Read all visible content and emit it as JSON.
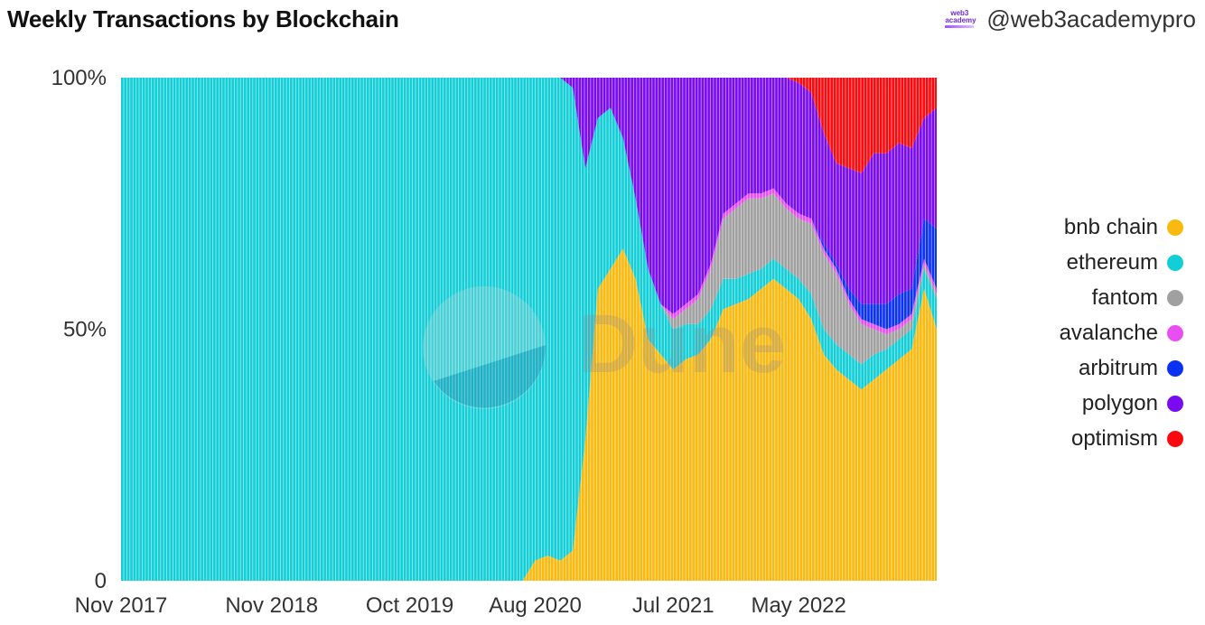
{
  "header": {
    "title": "Weekly Transactions by Blockchain",
    "handle": "@web3academypro",
    "logo_text_top": "web3",
    "logo_text_bottom": "academy",
    "logo_icon": "web3academy-logo-icon"
  },
  "watermark": {
    "text": "Dune",
    "icon": "dune-logo-icon"
  },
  "chart_data": {
    "type": "area",
    "stacked": true,
    "normalized": true,
    "title": "Weekly Transactions by Blockchain",
    "xlabel": "",
    "ylabel": "",
    "ylim": [
      0,
      100
    ],
    "y_ticks": [
      {
        "value": 0,
        "label": "0"
      },
      {
        "value": 50,
        "label": "50%"
      },
      {
        "value": 100,
        "label": "100%"
      }
    ],
    "x_range": [
      "2017-11",
      "2023-04"
    ],
    "x_ticks": [
      {
        "date": "2017-11",
        "label": "Nov 2017"
      },
      {
        "date": "2018-11",
        "label": "Nov 2018"
      },
      {
        "date": "2019-10",
        "label": "Oct 2019"
      },
      {
        "date": "2020-08",
        "label": "Aug 2020"
      },
      {
        "date": "2021-07",
        "label": "Jul 2021"
      },
      {
        "date": "2022-05",
        "label": "May 2022"
      }
    ],
    "legend_position": "right",
    "grid": false,
    "x": [
      "2017-11",
      "2018-05",
      "2018-11",
      "2019-05",
      "2019-10",
      "2020-03",
      "2020-07",
      "2020-08",
      "2020-09",
      "2020-10",
      "2020-11",
      "2020-12",
      "2021-01",
      "2021-02",
      "2021-03",
      "2021-04",
      "2021-05",
      "2021-06",
      "2021-07",
      "2021-08",
      "2021-09",
      "2021-10",
      "2021-11",
      "2021-12",
      "2022-01",
      "2022-02",
      "2022-03",
      "2022-04",
      "2022-05",
      "2022-06",
      "2022-07",
      "2022-08",
      "2022-09",
      "2022-10",
      "2022-11",
      "2022-12",
      "2023-01",
      "2023-02",
      "2023-03",
      "2023-04"
    ],
    "series": [
      {
        "name": "bnb chain",
        "color": "#F9B90E",
        "values": [
          0,
          0,
          0,
          0,
          0,
          0,
          0,
          4,
          5,
          4,
          6,
          28,
          58,
          62,
          66,
          60,
          48,
          45,
          42,
          44,
          45,
          48,
          54,
          55,
          56,
          58,
          60,
          58,
          56,
          52,
          45,
          42,
          40,
          38,
          40,
          42,
          44,
          46,
          58,
          50
        ]
      },
      {
        "name": "ethereum",
        "color": "#11CED7",
        "values": [
          100,
          100,
          100,
          100,
          100,
          100,
          100,
          96,
          95,
          96,
          92,
          54,
          34,
          32,
          22,
          16,
          14,
          10,
          8,
          7,
          6,
          6,
          6,
          5,
          5,
          4,
          4,
          4,
          4,
          5,
          5,
          5,
          5,
          5,
          5,
          4,
          4,
          4,
          4,
          6
        ]
      },
      {
        "name": "fantom",
        "color": "#A0A0A0",
        "values": [
          0,
          0,
          0,
          0,
          0,
          0,
          0,
          0,
          0,
          0,
          0,
          0,
          0,
          0,
          0,
          0,
          0,
          0,
          2,
          3,
          5,
          8,
          12,
          14,
          15,
          14,
          13,
          12,
          12,
          14,
          15,
          14,
          10,
          8,
          5,
          3,
          2,
          2,
          1,
          1
        ]
      },
      {
        "name": "avalanche",
        "color": "#E94EF2",
        "values": [
          0,
          0,
          0,
          0,
          0,
          0,
          0,
          0,
          0,
          0,
          0,
          0,
          0,
          0,
          0,
          0,
          0,
          0,
          1,
          1,
          1,
          1,
          1,
          1,
          1,
          1,
          1,
          1,
          1,
          1,
          1,
          1,
          1,
          1,
          1,
          1,
          1,
          1,
          1,
          1
        ]
      },
      {
        "name": "arbitrum",
        "color": "#0B32F2",
        "values": [
          0,
          0,
          0,
          0,
          0,
          0,
          0,
          0,
          0,
          0,
          0,
          0,
          0,
          0,
          0,
          0,
          0,
          0,
          0,
          0,
          0,
          0,
          0,
          0,
          0,
          0,
          0,
          0,
          0,
          0,
          1,
          1,
          2,
          3,
          4,
          5,
          6,
          5,
          8,
          12
        ]
      },
      {
        "name": "polygon",
        "color": "#7A0AEF",
        "values": [
          0,
          0,
          0,
          0,
          0,
          0,
          0,
          0,
          0,
          0,
          2,
          18,
          8,
          6,
          12,
          24,
          38,
          45,
          47,
          45,
          43,
          37,
          27,
          25,
          23,
          23,
          22,
          25,
          26,
          25,
          22,
          20,
          24,
          26,
          30,
          30,
          30,
          28,
          20,
          24
        ]
      },
      {
        "name": "optimism",
        "color": "#FA0A0E",
        "values": [
          0,
          0,
          0,
          0,
          0,
          0,
          0,
          0,
          0,
          0,
          0,
          0,
          0,
          0,
          0,
          0,
          0,
          0,
          0,
          0,
          0,
          0,
          0,
          0,
          0,
          0,
          0,
          0,
          1,
          3,
          11,
          17,
          18,
          19,
          15,
          15,
          13,
          14,
          8,
          6
        ]
      }
    ]
  }
}
